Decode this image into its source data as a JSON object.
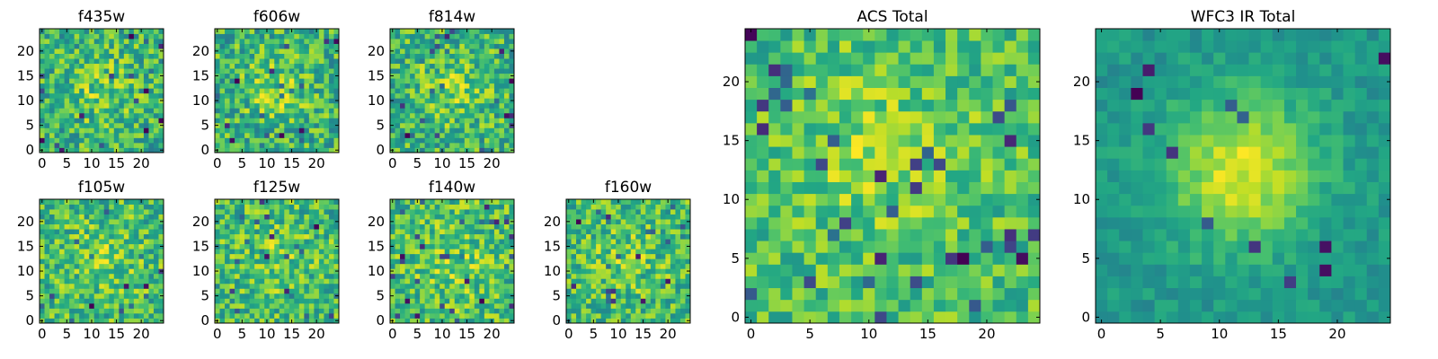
{
  "chart_data": [
    {
      "type": "heatmap",
      "title": "f435w",
      "x_ticks": [
        "0",
        "5",
        "10",
        "15",
        "20"
      ],
      "y_ticks": [
        "0",
        "5",
        "10",
        "15",
        "20"
      ],
      "grid_size": 25,
      "xlim": [
        -0.5,
        24.5
      ],
      "ylim": [
        -0.5,
        24.5
      ],
      "colormap": "viridis",
      "values_note_style": "noise"
    },
    {
      "type": "heatmap",
      "title": "f606w",
      "x_ticks": [
        "0",
        "5",
        "10",
        "15",
        "20"
      ],
      "y_ticks": [
        "0",
        "5",
        "10",
        "15",
        "20"
      ],
      "grid_size": 25,
      "xlim": [
        -0.5,
        24.5
      ],
      "ylim": [
        -0.5,
        24.5
      ],
      "colormap": "viridis"
    },
    {
      "type": "heatmap",
      "title": "f814w",
      "x_ticks": [
        "0",
        "5",
        "10",
        "15",
        "20"
      ],
      "y_ticks": [
        "0",
        "5",
        "10",
        "15",
        "20"
      ],
      "grid_size": 25,
      "xlim": [
        -0.5,
        24.5
      ],
      "ylim": [
        -0.5,
        24.5
      ],
      "colormap": "viridis"
    },
    {
      "type": "heatmap",
      "title": "f105w",
      "x_ticks": [
        "0",
        "5",
        "10",
        "15",
        "20"
      ],
      "y_ticks": [
        "0",
        "5",
        "10",
        "15",
        "20"
      ],
      "grid_size": 25,
      "xlim": [
        -0.5,
        24.5
      ],
      "ylim": [
        -0.5,
        24.5
      ],
      "colormap": "viridis"
    },
    {
      "type": "heatmap",
      "title": "f125w",
      "x_ticks": [
        "0",
        "5",
        "10",
        "15",
        "20"
      ],
      "y_ticks": [
        "0",
        "5",
        "10",
        "15",
        "20"
      ],
      "grid_size": 25,
      "xlim": [
        -0.5,
        24.5
      ],
      "ylim": [
        -0.5,
        24.5
      ],
      "colormap": "viridis"
    },
    {
      "type": "heatmap",
      "title": "f140w",
      "x_ticks": [
        "0",
        "5",
        "10",
        "15",
        "20"
      ],
      "y_ticks": [
        "0",
        "5",
        "10",
        "15",
        "20"
      ],
      "grid_size": 25,
      "xlim": [
        -0.5,
        24.5
      ],
      "ylim": [
        -0.5,
        24.5
      ],
      "colormap": "viridis"
    },
    {
      "type": "heatmap",
      "title": "f160w",
      "x_ticks": [
        "0",
        "5",
        "10",
        "15",
        "20"
      ],
      "y_ticks": [
        "0",
        "5",
        "10",
        "15",
        "20"
      ],
      "grid_size": 25,
      "xlim": [
        -0.5,
        24.5
      ],
      "ylim": [
        -0.5,
        24.5
      ],
      "colormap": "viridis"
    },
    {
      "type": "heatmap",
      "title": "ACS Total",
      "x_ticks": [
        "0",
        "5",
        "10",
        "15",
        "20"
      ],
      "y_ticks": [
        "0",
        "5",
        "10",
        "15",
        "20"
      ],
      "grid_size": 25,
      "xlim": [
        -0.5,
        24.5
      ],
      "ylim": [
        -0.5,
        24.5
      ],
      "colormap": "viridis"
    },
    {
      "type": "heatmap",
      "title": "WFC3 IR Total",
      "x_ticks": [
        "0",
        "5",
        "10",
        "15",
        "20"
      ],
      "y_ticks": [
        "0",
        "5",
        "10",
        "15",
        "20"
      ],
      "grid_size": 25,
      "xlim": [
        -0.5,
        24.5
      ],
      "ylim": [
        -0.5,
        24.5
      ],
      "colormap": "viridis"
    }
  ]
}
